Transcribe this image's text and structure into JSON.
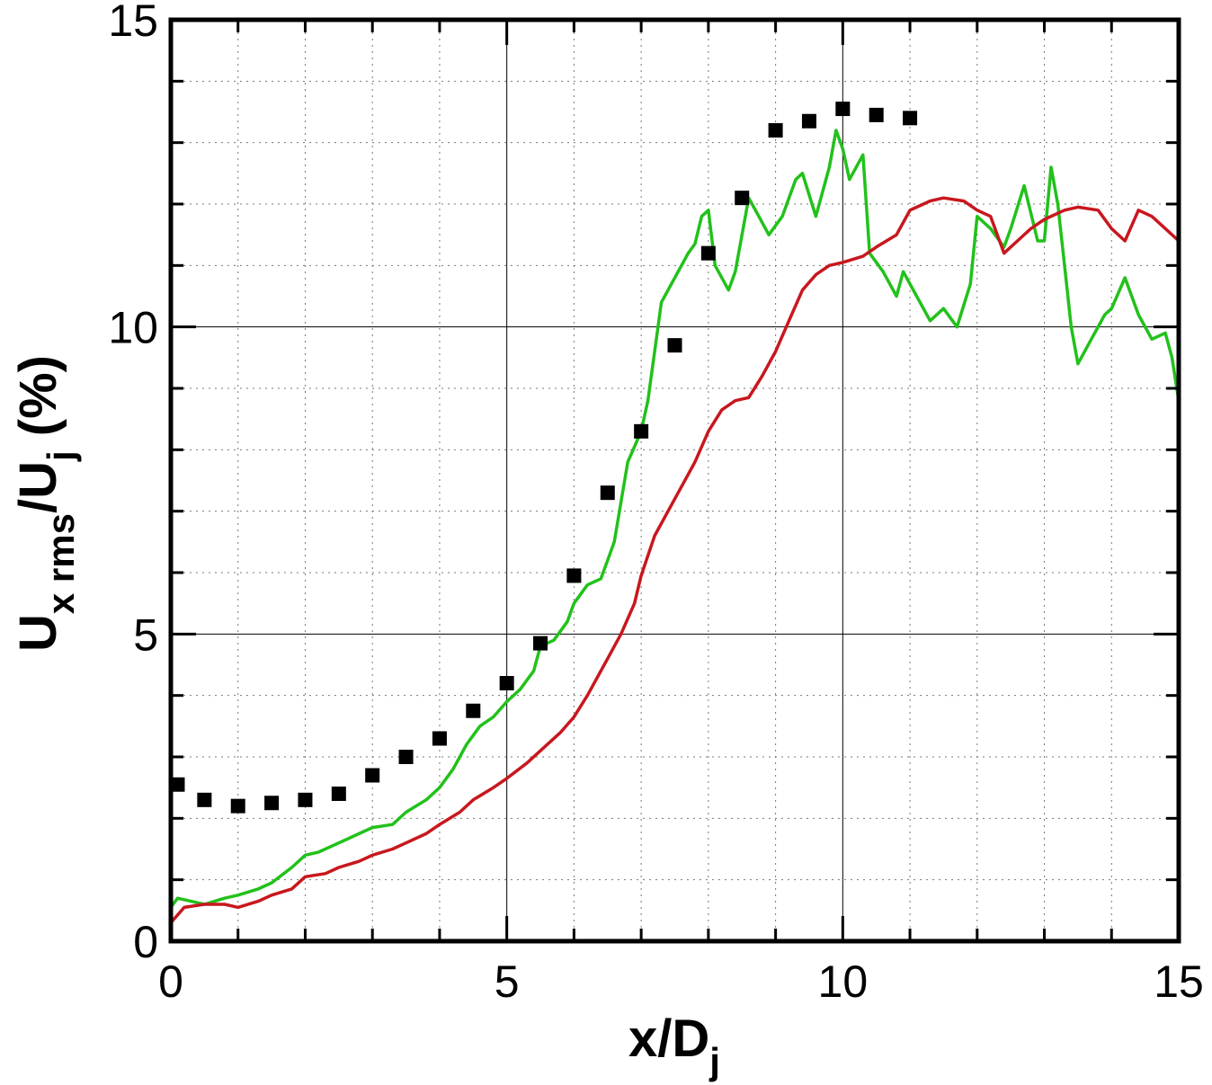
{
  "chart_data": {
    "type": "line",
    "title": "",
    "xlabel": {
      "main": "x/D",
      "sub": "j"
    },
    "ylabel": {
      "u1": "U",
      "sub1": "x rms",
      "mid": "/U",
      "sub2": "j",
      "tail": " (%)"
    },
    "xlim": [
      0,
      15
    ],
    "ylim": [
      0,
      15
    ],
    "xticks": [
      "0",
      "5",
      "10",
      "15"
    ],
    "yticks": [
      "0",
      "5",
      "10",
      "15"
    ],
    "grid": "major solid, minor dotted",
    "legend": "none",
    "series": [
      {
        "kind": "markers",
        "color": "#000000",
        "marker": "square",
        "x": [
          0.1,
          0.5,
          1.0,
          1.5,
          2.0,
          2.5,
          3.0,
          3.5,
          4.0,
          4.5,
          5.0,
          5.5,
          6.0,
          6.5,
          7.0,
          7.5,
          8.0,
          8.5,
          9.0,
          9.5,
          10.0,
          10.5,
          11.0
        ],
        "y": [
          2.55,
          2.3,
          2.2,
          2.25,
          2.3,
          2.4,
          2.7,
          3.0,
          3.3,
          3.75,
          4.2,
          4.85,
          5.95,
          7.3,
          8.3,
          9.7,
          11.2,
          12.1,
          13.2,
          13.35,
          13.55,
          13.45,
          13.4
        ]
      },
      {
        "kind": "line",
        "color": "#22c11b",
        "x": [
          0.0,
          0.1,
          0.3,
          0.5,
          0.8,
          1.0,
          1.3,
          1.5,
          1.8,
          2.0,
          2.2,
          2.5,
          2.8,
          3.0,
          3.3,
          3.5,
          3.8,
          4.0,
          4.2,
          4.4,
          4.6,
          4.8,
          5.0,
          5.2,
          5.4,
          5.5,
          5.7,
          5.9,
          6.0,
          6.2,
          6.4,
          6.5,
          6.6,
          6.8,
          7.0,
          7.1,
          7.2,
          7.3,
          7.5,
          7.7,
          7.8,
          7.9,
          8.0,
          8.1,
          8.3,
          8.4,
          8.6,
          8.8,
          8.9,
          9.1,
          9.3,
          9.4,
          9.6,
          9.8,
          9.9,
          10.0,
          10.1,
          10.3,
          10.4,
          10.6,
          10.8,
          10.9,
          11.1,
          11.3,
          11.5,
          11.7,
          11.9,
          12.0,
          12.2,
          12.4,
          12.5,
          12.7,
          12.9,
          13.0,
          13.1,
          13.2,
          13.3,
          13.4,
          13.5,
          13.7,
          13.9,
          14.0,
          14.2,
          14.4,
          14.6,
          14.8,
          14.9,
          15.0
        ],
        "y": [
          0.55,
          0.7,
          0.65,
          0.6,
          0.7,
          0.75,
          0.85,
          0.95,
          1.2,
          1.4,
          1.45,
          1.6,
          1.75,
          1.85,
          1.9,
          2.1,
          2.3,
          2.5,
          2.8,
          3.2,
          3.5,
          3.65,
          3.9,
          4.1,
          4.4,
          4.8,
          4.9,
          5.2,
          5.5,
          5.8,
          5.9,
          6.2,
          6.5,
          7.8,
          8.3,
          8.8,
          9.6,
          10.4,
          10.8,
          11.2,
          11.35,
          11.8,
          11.9,
          11.0,
          10.6,
          10.9,
          12.1,
          11.7,
          11.5,
          11.8,
          12.4,
          12.5,
          11.8,
          12.6,
          13.2,
          12.9,
          12.4,
          12.8,
          11.2,
          10.9,
          10.5,
          10.9,
          10.5,
          10.1,
          10.3,
          10.0,
          10.7,
          11.8,
          11.6,
          11.3,
          11.6,
          12.3,
          11.4,
          11.4,
          12.6,
          12.0,
          11.0,
          10.0,
          9.4,
          9.8,
          10.2,
          10.3,
          10.8,
          10.2,
          9.8,
          9.9,
          9.5,
          8.8
        ]
      },
      {
        "kind": "line",
        "color": "#c8171e",
        "x": [
          0.0,
          0.2,
          0.5,
          0.8,
          1.0,
          1.3,
          1.5,
          1.8,
          2.0,
          2.3,
          2.5,
          2.8,
          3.0,
          3.3,
          3.5,
          3.8,
          4.0,
          4.3,
          4.5,
          4.8,
          5.0,
          5.3,
          5.5,
          5.8,
          6.0,
          6.2,
          6.5,
          6.7,
          6.9,
          7.0,
          7.2,
          7.4,
          7.6,
          7.8,
          8.0,
          8.2,
          8.4,
          8.6,
          8.8,
          9.0,
          9.2,
          9.4,
          9.6,
          9.8,
          10.0,
          10.3,
          10.5,
          10.8,
          11.0,
          11.3,
          11.5,
          11.8,
          12.0,
          12.2,
          12.4,
          12.6,
          12.8,
          13.0,
          13.3,
          13.5,
          13.8,
          14.0,
          14.2,
          14.4,
          14.6,
          14.8,
          15.0
        ],
        "y": [
          0.3,
          0.55,
          0.6,
          0.6,
          0.55,
          0.65,
          0.75,
          0.85,
          1.05,
          1.1,
          1.2,
          1.3,
          1.4,
          1.5,
          1.6,
          1.75,
          1.9,
          2.1,
          2.3,
          2.5,
          2.65,
          2.9,
          3.1,
          3.4,
          3.65,
          4.0,
          4.6,
          5.0,
          5.5,
          5.95,
          6.6,
          7.0,
          7.4,
          7.8,
          8.3,
          8.65,
          8.8,
          8.85,
          9.2,
          9.6,
          10.1,
          10.6,
          10.85,
          11.0,
          11.05,
          11.15,
          11.3,
          11.5,
          11.9,
          12.05,
          12.1,
          12.05,
          11.9,
          11.8,
          11.2,
          11.4,
          11.6,
          11.75,
          11.9,
          11.95,
          11.9,
          11.6,
          11.4,
          11.9,
          11.8,
          11.6,
          11.4
        ]
      }
    ]
  }
}
